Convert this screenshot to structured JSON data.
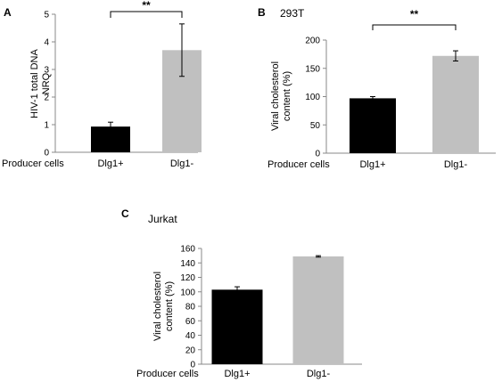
{
  "chart_data": [
    {
      "type": "bar",
      "panel": "A",
      "title": "",
      "ylabel": [
        "HIV-1 total DNA",
        "NRQ"
      ],
      "xlabel": "Producer cells",
      "categories": [
        "Dlg1+",
        "Dlg1-"
      ],
      "values": [
        0.93,
        3.7
      ],
      "errors": [
        0.16,
        0.95
      ],
      "colors": [
        "#000000",
        "#c0c0c0"
      ],
      "ylim": [
        0,
        5
      ],
      "yticks": [
        "0",
        "1",
        "2",
        "3",
        "4",
        "5"
      ],
      "significance": "**"
    },
    {
      "type": "bar",
      "panel": "B",
      "title": "293T",
      "ylabel": [
        "Viral cholesterol",
        "content (%)"
      ],
      "xlabel": "Producer cells",
      "categories": [
        "Dlg1+",
        "Dlg1-"
      ],
      "values": [
        97,
        172
      ],
      "errors": [
        3,
        9
      ],
      "colors": [
        "#000000",
        "#c0c0c0"
      ],
      "ylim": [
        0,
        200
      ],
      "yticks": [
        "0",
        "50",
        "100",
        "150",
        "200"
      ],
      "significance": "**"
    },
    {
      "type": "bar",
      "panel": "C",
      "title": "Jurkat",
      "ylabel": [
        "Viral cholesterol",
        "content (%)"
      ],
      "xlabel": "Producer cells",
      "categories": [
        "Dlg1+",
        "Dlg1-"
      ],
      "values": [
        103,
        149
      ],
      "errors": [
        4,
        1
      ],
      "colors": [
        "#000000",
        "#c0c0c0"
      ],
      "ylim": [
        0,
        160
      ],
      "yticks": [
        "0",
        "20",
        "40",
        "60",
        "80",
        "100",
        "120",
        "140",
        "160"
      ],
      "significance": ""
    }
  ]
}
